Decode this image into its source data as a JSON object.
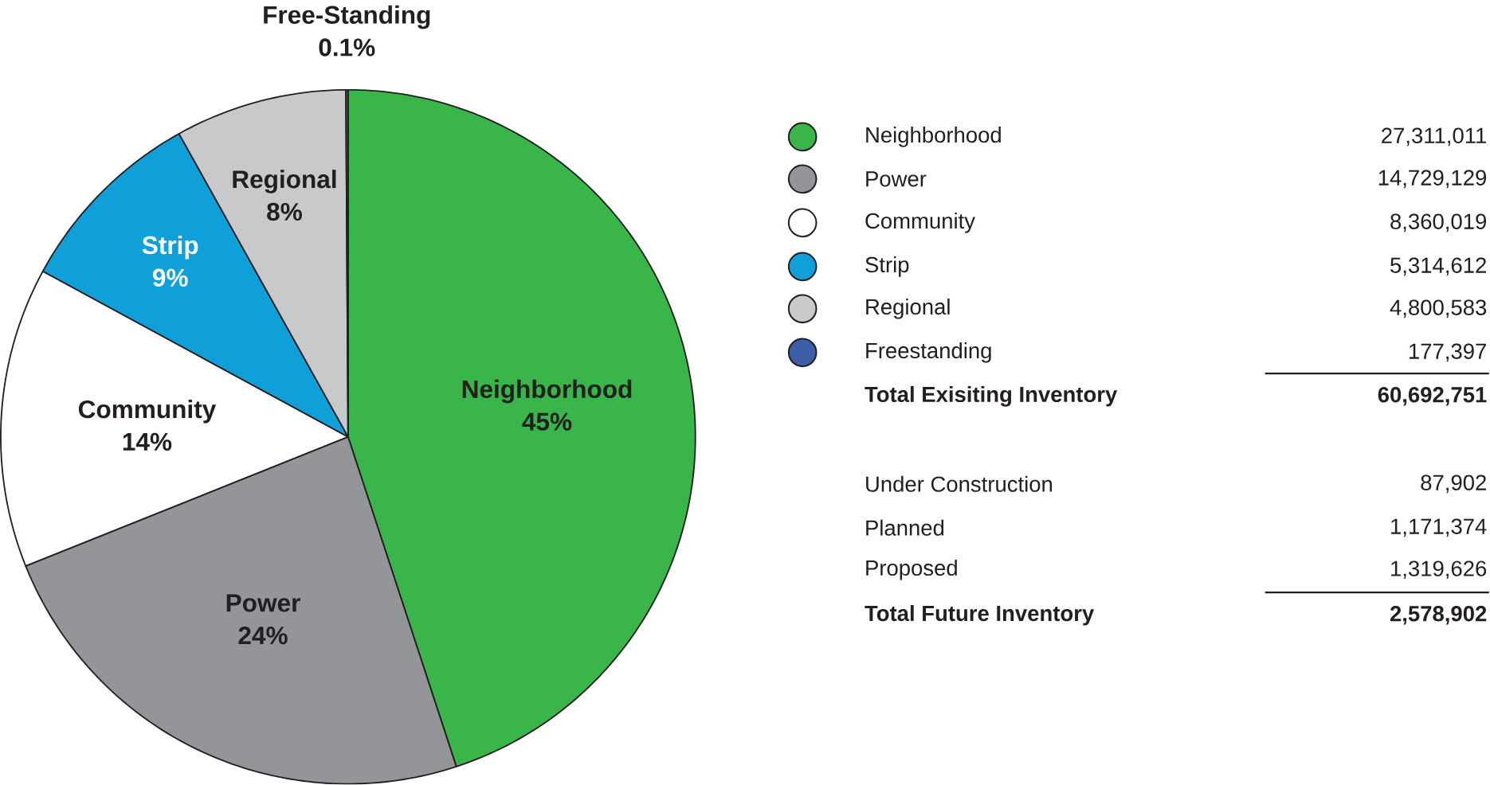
{
  "chart_data": {
    "type": "pie",
    "categories": [
      "Neighborhood",
      "Power",
      "Community",
      "Strip",
      "Regional",
      "Free-Standing"
    ],
    "values": [
      45,
      24,
      14,
      9,
      8,
      0.1
    ],
    "value_labels": [
      "45%",
      "24%",
      "14%",
      "9%",
      "8%",
      "0.1%"
    ],
    "colors": [
      "#39b54a",
      "#939598",
      "#ffffff",
      "#0fa0da",
      "#c8c9cb",
      "#3f5ea8"
    ],
    "annotations": [
      "Neighborhood",
      "27,311,011",
      "Power",
      "14,729,129",
      "Community",
      "8,360,019",
      "Strip",
      "5,314,612",
      "Regional",
      "4,800,583",
      "Freestanding",
      "177,397",
      "Total Exisiting Inventory",
      "60,692,751",
      "Under Construction",
      "87,902",
      "Planned",
      "1,171,374",
      "Proposed",
      "1,319,626",
      "Total Future Inventory",
      "2,578,902"
    ]
  }
}
